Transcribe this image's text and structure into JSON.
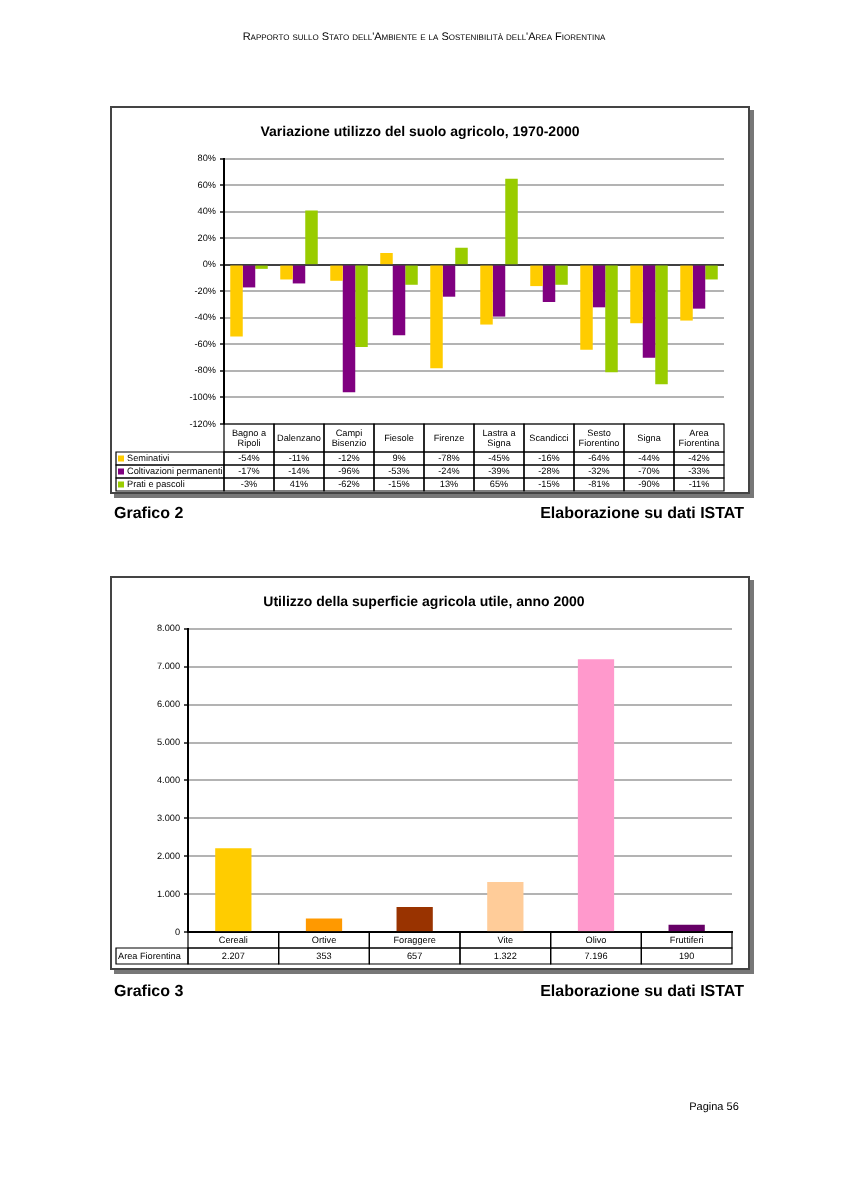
{
  "chart_data": [
    {
      "type": "bar",
      "title": "Variazione utilizzo del suolo agricolo, 1970-2000",
      "categories": [
        "Bagno a Ripoli",
        "Dalenzano",
        "Campi Bisenzio",
        "Fiesole",
        "Firenze",
        "Lastra a Signa",
        "Scandicci",
        "Sesto Fiorentino",
        "Signa",
        "Area Fiorentina"
      ],
      "series": [
        {
          "name": "Seminativi",
          "color": "#ffcc00",
          "values": [
            -54,
            -11,
            -12,
            9,
            -78,
            -45,
            -16,
            -64,
            -44,
            -42
          ],
          "value_labels": [
            "-54%",
            "-11%",
            "-12%",
            "9%",
            "-78%",
            "-45%",
            "-16%",
            "-64%",
            "-44%",
            "-42%"
          ]
        },
        {
          "name": "Coltivazioni permanenti",
          "color": "#800080",
          "values": [
            -17,
            -14,
            -96,
            -53,
            -24,
            -39,
            -28,
            -32,
            -70,
            -33
          ],
          "value_labels": [
            "-17%",
            "-14%",
            "-96%",
            "-53%",
            "-24%",
            "-39%",
            "-28%",
            "-32%",
            "-70%",
            "-33%"
          ]
        },
        {
          "name": "Prati e pascoli",
          "color": "#99cc00",
          "values": [
            -3,
            41,
            -62,
            -15,
            13,
            65,
            -15,
            -81,
            -90,
            -11
          ],
          "value_labels": [
            "-3%",
            "41%",
            "-62%",
            "-15%",
            "13%",
            "65%",
            "-15%",
            "-81%",
            "-90%",
            "-11%"
          ]
        }
      ],
      "ylim": [
        -120,
        80
      ],
      "yticks": [
        {
          "value": -120,
          "label": "-120%"
        },
        {
          "value": -100,
          "label": "-100%"
        },
        {
          "value": -80,
          "label": "-80%"
        },
        {
          "value": -60,
          "label": "-60%"
        },
        {
          "value": -40,
          "label": "-40%"
        },
        {
          "value": -20,
          "label": "-20%"
        },
        {
          "value": 0,
          "label": "0%"
        },
        {
          "value": 20,
          "label": "20%"
        },
        {
          "value": 40,
          "label": "40%"
        },
        {
          "value": 60,
          "label": "60%"
        },
        {
          "value": 80,
          "label": "80%"
        }
      ],
      "grid": "y",
      "legend": "bottom",
      "annotations": [
        "Rapporto sullo Stato dell'Ambiente e la Sostenibilità dell'Area Fiorentina",
        "Grafico 2",
        "Elaborazione su dati ISTAT"
      ]
    },
    {
      "type": "bar",
      "title": "Utilizzo della superficie agricola utile, anno 2000",
      "categories": [
        "Cereali",
        "Ortive",
        "Foraggere",
        "Vite",
        "Olivo",
        "Fruttiferi"
      ],
      "series": [
        {
          "name": "Area Fiorentina",
          "colors": [
            "#ffcc00",
            "#ff9900",
            "#993300",
            "#ffcc99",
            "#ff99cc",
            "#660066"
          ],
          "values": [
            2207,
            353,
            657,
            1322,
            7196,
            190
          ],
          "value_labels": [
            "2.207",
            "353",
            "657",
            "1.322",
            "7.196",
            "190"
          ]
        }
      ],
      "ylim": [
        0,
        8000
      ],
      "yticks": [
        0,
        {
          "value": 1000,
          "label": "1.000"
        },
        {
          "value": 2000,
          "label": "2.000"
        },
        {
          "value": 3000,
          "label": "3.000"
        },
        {
          "value": 4000,
          "label": "4.000"
        },
        {
          "value": 5000,
          "label": "5.000"
        },
        {
          "value": 6000,
          "label": "6.000"
        },
        {
          "value": 7000,
          "label": "7.000"
        },
        {
          "value": 8000,
          "label": "8.000"
        }
      ],
      "grid": "y",
      "annotations": [
        "Grafico 3",
        "Elaborazione su dati ISTAT",
        "Pagina 56"
      ]
    }
  ]
}
